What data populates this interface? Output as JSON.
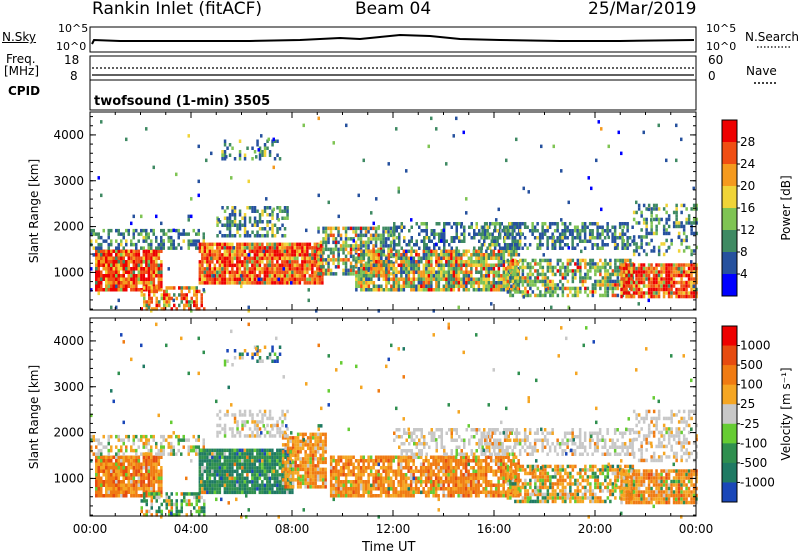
{
  "header": {
    "station": "Rankin Inlet (fitACF)",
    "beam": "Beam 04",
    "date": "25/Mar/2019"
  },
  "top_panels": {
    "nsky_label": "N.Sky",
    "nsky_ticks": [
      "10^5",
      "10^0"
    ],
    "nsearch_label": "N.Search",
    "nsearch_ticks": [
      "10^5",
      "10^0"
    ],
    "freq_label": "Freq.",
    "freq_unit": "[MHz]",
    "freq_ticks": [
      "18",
      "8"
    ],
    "nave_label": "Nave",
    "nave_ticks": [
      "60",
      "0"
    ],
    "cpid_label": "CPID",
    "cpid_text": "twofsound (1-min) 3505"
  },
  "chart_data": [
    {
      "type": "heatmap",
      "name": "power-panel",
      "ylabel": "Slant Range [km]",
      "yticks": [
        1000,
        2000,
        3000,
        4000
      ],
      "ylim": [
        180,
        4500
      ],
      "xlim": [
        0,
        24
      ],
      "xticks": [
        "00:00",
        "04:00",
        "08:00",
        "12:00",
        "16:00",
        "20:00",
        "00:00"
      ],
      "colorbar_label": "Power [dB]",
      "colorbar_ticks": [
        "4",
        "8",
        "12",
        "16",
        "20",
        "24",
        "28"
      ],
      "colors": [
        "#0000ff",
        "#26519e",
        "#3f8a63",
        "#7fc454",
        "#f0d438",
        "#f59a1e",
        "#f04e13",
        "#ee0000"
      ]
    },
    {
      "type": "heatmap",
      "name": "velocity-panel",
      "ylabel": "Slant Range [km]",
      "yticks": [
        1000,
        2000,
        3000,
        4000
      ],
      "ylim": [
        180,
        4500
      ],
      "xlim": [
        0,
        24
      ],
      "xticks": [
        "00:00",
        "04:00",
        "08:00",
        "12:00",
        "16:00",
        "20:00",
        "00:00"
      ],
      "xlabel": "Time UT",
      "colorbar_label": "Velocity [m s⁻¹]",
      "colorbar_ticks": [
        "1000",
        "500",
        "100",
        "25",
        "-25",
        "-100",
        "-500",
        "-1000"
      ],
      "colors": [
        "#1a47b8",
        "#1f7a63",
        "#2f8f4f",
        "#66cc33",
        "#c8c8c8",
        "#f5a623",
        "#f07b12",
        "#e64b10",
        "#ee0000"
      ]
    }
  ]
}
